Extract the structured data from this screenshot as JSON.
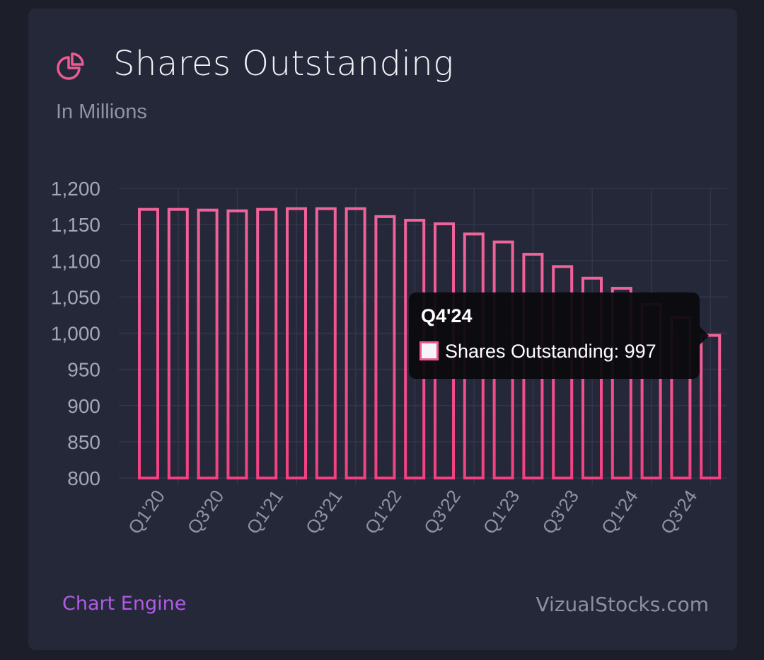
{
  "header": {
    "title": "Shares Outstanding",
    "subtitle": "In Millions",
    "icon": "pie-chart-icon"
  },
  "footer": {
    "left_link": "Chart Engine",
    "right_text": "VizualStocks.com"
  },
  "tooltip": {
    "title": "Q4'24",
    "label": "Shares Outstanding: 997"
  },
  "colors": {
    "background": "#1c1e29",
    "card": "#252839",
    "bar_stroke_top": "#f0639a",
    "bar_stroke_bottom": "#f44082",
    "grid": "#33364a",
    "accent_link": "#b05be6"
  },
  "chart_data": {
    "type": "bar",
    "title": "Shares Outstanding",
    "subtitle": "In Millions",
    "categories": [
      "Q1'20",
      "Q2'20",
      "Q3'20",
      "Q4'20",
      "Q1'21",
      "Q2'21",
      "Q3'21",
      "Q4'21",
      "Q1'22",
      "Q2'22",
      "Q3'22",
      "Q4'22",
      "Q1'23",
      "Q2'23",
      "Q3'23",
      "Q4'23",
      "Q1'24",
      "Q2'24",
      "Q3'24",
      "Q4'24"
    ],
    "tick_labels": [
      "Q1'20",
      "Q3'20",
      "Q1'21",
      "Q3'21",
      "Q1'22",
      "Q3'22",
      "Q1'23",
      "Q3'23",
      "Q1'24",
      "Q3'24"
    ],
    "series": [
      {
        "name": "Shares Outstanding",
        "values": [
          1171,
          1171,
          1170,
          1169,
          1171,
          1172,
          1172,
          1172,
          1161,
          1156,
          1151,
          1137,
          1126,
          1109,
          1092,
          1076,
          1062,
          1040,
          1022,
          997
        ]
      }
    ],
    "ylim": [
      800,
      1200
    ],
    "yticks": [
      800,
      850,
      900,
      950,
      1000,
      1050,
      1100,
      1150,
      1200
    ],
    "ytick_labels": [
      "800",
      "850",
      "900",
      "950",
      "1,000",
      "1,050",
      "1,100",
      "1,150",
      "1,200"
    ],
    "grid": true,
    "highlighted": "Q4'24"
  }
}
